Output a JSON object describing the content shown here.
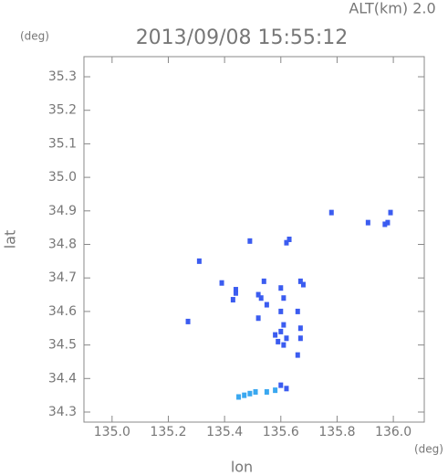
{
  "chart_data": {
    "type": "scatter",
    "title": "2013/09/08 15:55:12",
    "subtitle": "ALT(km) 2.0",
    "y_unit": "(deg)",
    "x_unit": "(deg)",
    "ylabel": "lat",
    "xlabel": "lon",
    "xlim": [
      134.9,
      136.11
    ],
    "ylim": [
      34.27,
      35.36
    ],
    "xticks": [
      {
        "value": 135.0,
        "label": "135.0"
      },
      135.2,
      135.4,
      135.6,
      135.8,
      {
        "value": 136.0,
        "label": "136.0"
      }
    ],
    "yticks": [
      35.3,
      35.2,
      35.1,
      {
        "value": 35.0,
        "label": "35.0"
      },
      34.9,
      34.8,
      34.7,
      34.6,
      34.5,
      34.4,
      34.3
    ],
    "series": [
      {
        "color": "#3b5cf0",
        "x": [
          135.99,
          135.98,
          135.97,
          135.78,
          135.91,
          135.63,
          135.62,
          135.49,
          135.31,
          135.39,
          135.44,
          135.44,
          135.43,
          135.27,
          135.54,
          135.52,
          135.53,
          135.55,
          135.6,
          135.61,
          135.6,
          135.61,
          135.6,
          135.58,
          135.59,
          135.61,
          135.67,
          135.68,
          135.66,
          135.67,
          135.67,
          135.66,
          135.52,
          135.62,
          135.6,
          135.62
        ],
        "y": [
          34.895,
          34.865,
          34.86,
          34.895,
          34.865,
          34.815,
          34.805,
          34.81,
          34.75,
          34.685,
          34.665,
          34.655,
          34.635,
          34.57,
          34.69,
          34.65,
          34.64,
          34.62,
          34.67,
          34.64,
          34.6,
          34.56,
          34.54,
          34.53,
          34.51,
          34.5,
          34.69,
          34.68,
          34.6,
          34.55,
          34.52,
          34.47,
          34.58,
          34.52,
          34.38,
          34.37
        ]
      },
      {
        "color": "#3aa8f0",
        "x": [
          135.45,
          135.47,
          135.49,
          135.51,
          135.55,
          135.58
        ],
        "y": [
          34.345,
          34.35,
          34.355,
          34.36,
          34.36,
          34.365
        ]
      }
    ]
  }
}
